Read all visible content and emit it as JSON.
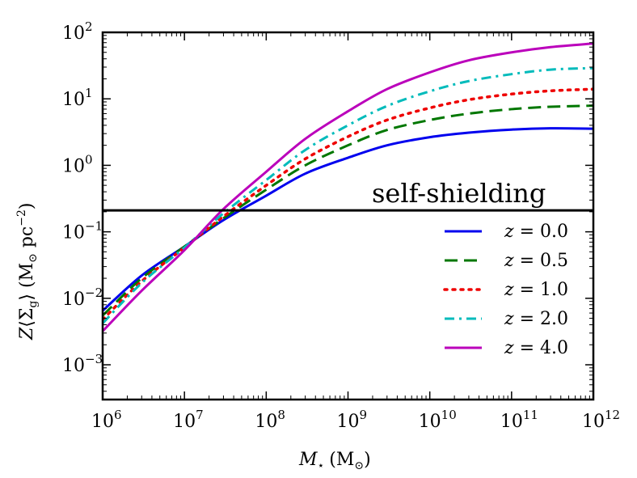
{
  "chart_data": {
    "type": "line",
    "xscale": "log",
    "yscale": "log",
    "xlim": [
      1000000.0,
      1000000000000.0
    ],
    "ylim": [
      0.0003,
      100
    ],
    "xlabel_main": "M",
    "xlabel_sub": "⋆",
    "xlabel_unit": "(M",
    "xlabel_unit_sub": "⊙",
    "xlabel_close": ")",
    "ylabel_text": "Z⟨Σ",
    "ylabel_sub": "g",
    "ylabel_close": "⟩  (M",
    "ylabel_unit_sub": "⊙",
    "ylabel_unit_tail": " pc",
    "ylabel_exp": "−2",
    "ylabel_end": ")",
    "x_ticks": [
      {
        "value": 1000000.0,
        "base": "10",
        "exp": "6"
      },
      {
        "value": 10000000.0,
        "base": "10",
        "exp": "7"
      },
      {
        "value": 100000000.0,
        "base": "10",
        "exp": "8"
      },
      {
        "value": 1000000000.0,
        "base": "10",
        "exp": "9"
      },
      {
        "value": 10000000000.0,
        "base": "10",
        "exp": "10"
      },
      {
        "value": 100000000000.0,
        "base": "10",
        "exp": "11"
      },
      {
        "value": 1000000000000.0,
        "base": "10",
        "exp": "12"
      }
    ],
    "y_ticks": [
      {
        "value": 0.001,
        "base": "10",
        "exp": "−3"
      },
      {
        "value": 0.01,
        "base": "10",
        "exp": "−2"
      },
      {
        "value": 0.1,
        "base": "10",
        "exp": "−1"
      },
      {
        "value": 1,
        "base": "10",
        "exp": "0"
      },
      {
        "value": 10,
        "base": "10",
        "exp": "1"
      },
      {
        "value": 100,
        "base": "10",
        "exp": "2"
      }
    ],
    "hline": {
      "y": 0.21,
      "label": "self-shielding",
      "color": "#000000"
    },
    "x": [
      1000000.0,
      3000000.0,
      10000000.0,
      30000000.0,
      100000000.0,
      300000000.0,
      1000000000.0,
      3000000000.0,
      10000000000.0,
      30000000000.0,
      100000000000.0,
      300000000000.0,
      1000000000000.0
    ],
    "series": [
      {
        "name": "z = 0.0",
        "legend_var": "z",
        "legend_value": "= 0.0",
        "color": "#0000ee",
        "dash": "solid",
        "values": [
          0.0065,
          0.022,
          0.06,
          0.15,
          0.35,
          0.75,
          1.3,
          2.0,
          2.65,
          3.1,
          3.45,
          3.6,
          3.55
        ]
      },
      {
        "name": "z = 0.5",
        "legend_var": "z",
        "legend_value": "= 0.5",
        "color": "#007700",
        "dash": "dashed",
        "values": [
          0.0055,
          0.02,
          0.06,
          0.16,
          0.43,
          1.0,
          2.0,
          3.4,
          4.8,
          6.0,
          7.0,
          7.6,
          7.9
        ]
      },
      {
        "name": "z = 1.0",
        "legend_var": "z",
        "legend_value": "= 1.0",
        "color": "#ee0000",
        "dash": "dotted",
        "values": [
          0.0048,
          0.018,
          0.058,
          0.17,
          0.5,
          1.25,
          2.7,
          4.8,
          7.3,
          9.7,
          11.8,
          13.2,
          14.0
        ]
      },
      {
        "name": "z = 2.0",
        "legend_var": "z",
        "legend_value": "= 2.0",
        "color": "#00bbbb",
        "dash": "dashdot",
        "values": [
          0.0042,
          0.017,
          0.058,
          0.19,
          0.6,
          1.7,
          4.0,
          7.8,
          13.0,
          18.5,
          23.5,
          27.5,
          29.0
        ]
      },
      {
        "name": "z = 4.0",
        "legend_var": "z",
        "legend_value": "= 4.0",
        "color": "#bb00bb",
        "dash": "solid",
        "values": [
          0.0032,
          0.013,
          0.053,
          0.22,
          0.8,
          2.5,
          6.5,
          14.0,
          25.0,
          38.0,
          50.0,
          60.0,
          68.0
        ]
      }
    ],
    "legend_position": "lower-right"
  }
}
